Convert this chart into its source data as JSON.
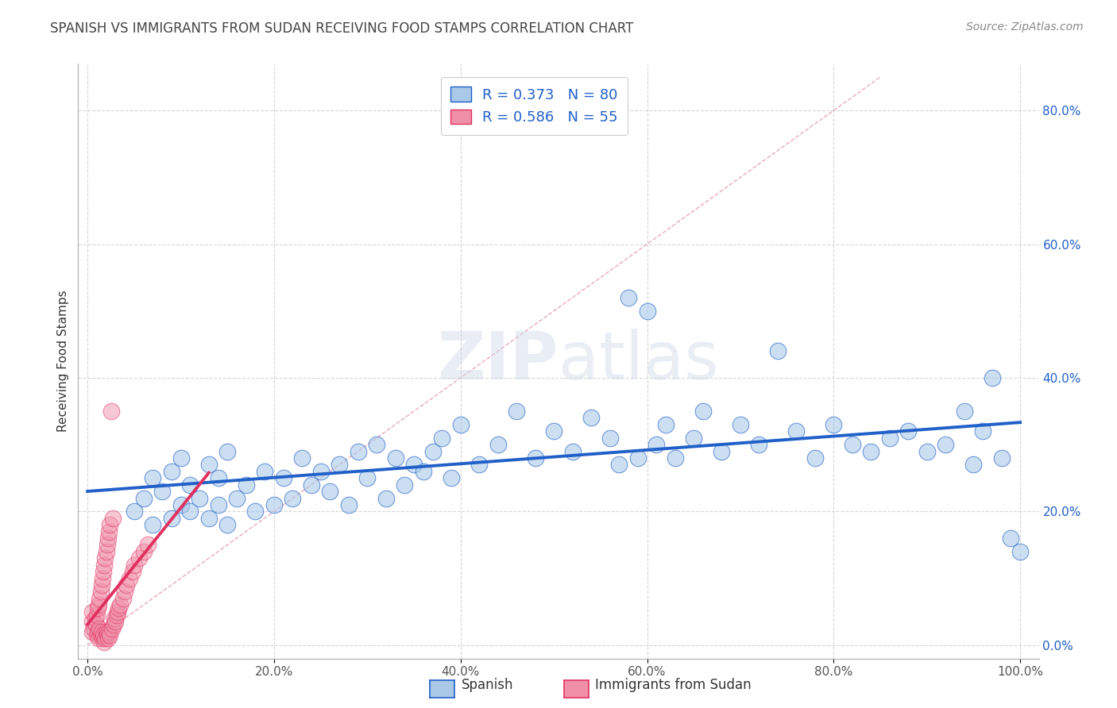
{
  "title": "SPANISH VS IMMIGRANTS FROM SUDAN RECEIVING FOOD STAMPS CORRELATION CHART",
  "source": "Source: ZipAtlas.com",
  "ylabel": "Receiving Food Stamps",
  "watermark": "ZIPatlas",
  "legend_label1": "Spanish",
  "legend_label2": "Immigrants from Sudan",
  "r1": 0.373,
  "n1": 80,
  "r2": 0.586,
  "n2": 55,
  "xlim": [
    -0.01,
    1.02
  ],
  "ylim": [
    -0.02,
    0.87
  ],
  "xticks": [
    0.0,
    0.2,
    0.4,
    0.6,
    0.8,
    1.0
  ],
  "yticks": [
    0.0,
    0.2,
    0.4,
    0.6,
    0.8
  ],
  "xtick_labels": [
    "0.0%",
    "20.0%",
    "40.0%",
    "60.0%",
    "80.0%",
    "100.0%"
  ],
  "ytick_labels_right": [
    "0.0%",
    "20.0%",
    "40.0%",
    "60.0%",
    "80.0%"
  ],
  "color_spanish": "#aac8e8",
  "color_sudan": "#f090a8",
  "color_line_spanish": "#2060c8",
  "color_line_sudan": "#e03060",
  "color_diag": "#e8a0b0",
  "background_color": "#ffffff",
  "spanish_x": [
    0.05,
    0.06,
    0.07,
    0.07,
    0.08,
    0.09,
    0.09,
    0.1,
    0.1,
    0.11,
    0.11,
    0.12,
    0.13,
    0.13,
    0.14,
    0.14,
    0.15,
    0.15,
    0.16,
    0.17,
    0.18,
    0.19,
    0.2,
    0.21,
    0.22,
    0.23,
    0.24,
    0.25,
    0.26,
    0.27,
    0.28,
    0.29,
    0.3,
    0.31,
    0.32,
    0.33,
    0.34,
    0.35,
    0.36,
    0.37,
    0.38,
    0.39,
    0.4,
    0.42,
    0.44,
    0.46,
    0.48,
    0.5,
    0.52,
    0.54,
    0.56,
    0.57,
    0.58,
    0.59,
    0.6,
    0.61,
    0.62,
    0.63,
    0.65,
    0.66,
    0.68,
    0.7,
    0.72,
    0.74,
    0.76,
    0.78,
    0.8,
    0.82,
    0.84,
    0.86,
    0.88,
    0.9,
    0.92,
    0.94,
    0.95,
    0.96,
    0.97,
    0.98,
    0.99,
    1.0
  ],
  "spanish_y": [
    0.2,
    0.22,
    0.25,
    0.18,
    0.23,
    0.19,
    0.26,
    0.21,
    0.28,
    0.2,
    0.24,
    0.22,
    0.19,
    0.27,
    0.21,
    0.25,
    0.18,
    0.29,
    0.22,
    0.24,
    0.2,
    0.26,
    0.21,
    0.25,
    0.22,
    0.28,
    0.24,
    0.26,
    0.23,
    0.27,
    0.21,
    0.29,
    0.25,
    0.3,
    0.22,
    0.28,
    0.24,
    0.27,
    0.26,
    0.29,
    0.31,
    0.25,
    0.33,
    0.27,
    0.3,
    0.35,
    0.28,
    0.32,
    0.29,
    0.34,
    0.31,
    0.27,
    0.52,
    0.28,
    0.5,
    0.3,
    0.33,
    0.28,
    0.31,
    0.35,
    0.29,
    0.33,
    0.3,
    0.44,
    0.32,
    0.28,
    0.33,
    0.3,
    0.29,
    0.31,
    0.32,
    0.29,
    0.3,
    0.35,
    0.27,
    0.32,
    0.4,
    0.28,
    0.16,
    0.14
  ],
  "sudan_x": [
    0.005,
    0.005,
    0.005,
    0.007,
    0.008,
    0.009,
    0.01,
    0.01,
    0.011,
    0.011,
    0.012,
    0.012,
    0.013,
    0.013,
    0.014,
    0.014,
    0.015,
    0.015,
    0.016,
    0.016,
    0.017,
    0.017,
    0.018,
    0.018,
    0.019,
    0.019,
    0.02,
    0.02,
    0.021,
    0.021,
    0.022,
    0.022,
    0.023,
    0.023,
    0.024,
    0.024,
    0.025,
    0.026,
    0.027,
    0.028,
    0.029,
    0.03,
    0.031,
    0.032,
    0.033,
    0.035,
    0.038,
    0.04,
    0.042,
    0.045,
    0.048,
    0.05,
    0.055,
    0.06,
    0.065
  ],
  "sudan_y": [
    0.02,
    0.035,
    0.05,
    0.025,
    0.04,
    0.03,
    0.015,
    0.045,
    0.02,
    0.055,
    0.01,
    0.06,
    0.025,
    0.07,
    0.015,
    0.08,
    0.02,
    0.09,
    0.01,
    0.1,
    0.015,
    0.11,
    0.005,
    0.12,
    0.01,
    0.13,
    0.02,
    0.14,
    0.015,
    0.15,
    0.01,
    0.16,
    0.02,
    0.17,
    0.015,
    0.18,
    0.35,
    0.025,
    0.19,
    0.03,
    0.04,
    0.035,
    0.045,
    0.05,
    0.055,
    0.06,
    0.07,
    0.08,
    0.09,
    0.1,
    0.11,
    0.12,
    0.13,
    0.14,
    0.15
  ],
  "title_fontsize": 12,
  "axis_fontsize": 11,
  "tick_fontsize": 11,
  "source_fontsize": 10
}
